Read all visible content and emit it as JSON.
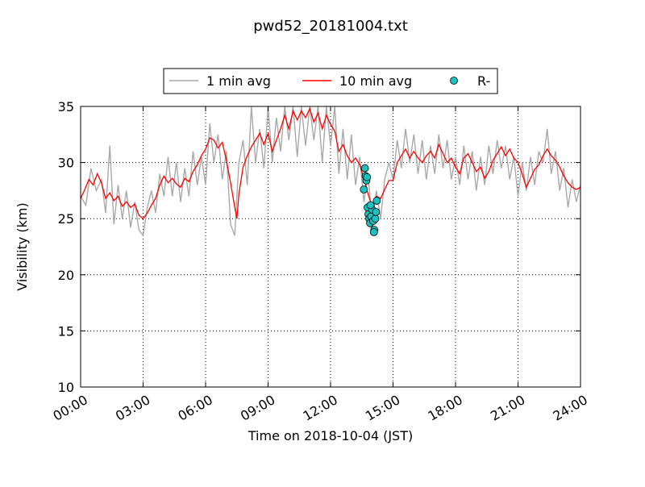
{
  "chart_data": {
    "type": "line",
    "title": "pwd52_20181004.txt",
    "xlabel": "Time on 2018-10-04 (JST)",
    "ylabel": "Visibility (km)",
    "xlim": [
      "00:00",
      "24:00"
    ],
    "ylim": [
      10,
      35
    ],
    "x_ticks": [
      "00:00",
      "03:00",
      "06:00",
      "09:00",
      "12:00",
      "15:00",
      "18:00",
      "21:00",
      "24:00"
    ],
    "y_ticks": [
      "10",
      "15",
      "20",
      "25",
      "30",
      "35"
    ],
    "grid": true,
    "legend_position": "top-center",
    "legend": [
      {
        "label": "1 min avg",
        "kind": "line",
        "color": "#a9a9a9"
      },
      {
        "label": "10 min avg",
        "kind": "line",
        "color": "#ff0000"
      },
      {
        "label": "R-",
        "kind": "marker",
        "color": "#20c0c0"
      }
    ],
    "series": [
      {
        "name": "1 min avg",
        "color": "#a9a9a9",
        "points": [
          [
            0.0,
            27.0
          ],
          [
            0.25,
            26.2
          ],
          [
            0.5,
            29.5
          ],
          [
            0.75,
            27.5
          ],
          [
            1.0,
            28.5
          ],
          [
            1.2,
            25.5
          ],
          [
            1.4,
            31.5
          ],
          [
            1.6,
            24.5
          ],
          [
            1.8,
            28.0
          ],
          [
            2.0,
            25.0
          ],
          [
            2.2,
            27.5
          ],
          [
            2.4,
            24.2
          ],
          [
            2.6,
            26.5
          ],
          [
            2.8,
            24.0
          ],
          [
            3.0,
            23.5
          ],
          [
            3.2,
            26.0
          ],
          [
            3.4,
            27.5
          ],
          [
            3.6,
            25.5
          ],
          [
            3.8,
            29.0
          ],
          [
            4.0,
            27.0
          ],
          [
            4.2,
            30.5
          ],
          [
            4.4,
            27.0
          ],
          [
            4.6,
            30.0
          ],
          [
            4.8,
            26.5
          ],
          [
            5.0,
            29.5
          ],
          [
            5.2,
            27.0
          ],
          [
            5.4,
            31.0
          ],
          [
            5.6,
            28.0
          ],
          [
            5.8,
            30.5
          ],
          [
            6.0,
            28.0
          ],
          [
            6.2,
            33.5
          ],
          [
            6.4,
            30.0
          ],
          [
            6.6,
            32.5
          ],
          [
            6.8,
            28.5
          ],
          [
            7.0,
            31.0
          ],
          [
            7.2,
            24.5
          ],
          [
            7.4,
            23.5
          ],
          [
            7.5,
            27.0
          ],
          [
            7.6,
            30.0
          ],
          [
            7.8,
            32.0
          ],
          [
            8.0,
            28.0
          ],
          [
            8.2,
            35.0
          ],
          [
            8.4,
            30.0
          ],
          [
            8.6,
            33.0
          ],
          [
            8.8,
            29.5
          ],
          [
            9.0,
            35.0
          ],
          [
            9.2,
            30.0
          ],
          [
            9.4,
            34.0
          ],
          [
            9.6,
            31.0
          ],
          [
            9.8,
            35.0
          ],
          [
            10.0,
            32.0
          ],
          [
            10.2,
            35.0
          ],
          [
            10.4,
            30.5
          ],
          [
            10.6,
            35.0
          ],
          [
            10.8,
            31.5
          ],
          [
            11.0,
            35.0
          ],
          [
            11.2,
            32.0
          ],
          [
            11.4,
            35.0
          ],
          [
            11.6,
            30.0
          ],
          [
            11.8,
            35.0
          ],
          [
            12.0,
            31.5
          ],
          [
            12.2,
            35.0
          ],
          [
            12.4,
            29.0
          ],
          [
            12.6,
            33.0
          ],
          [
            12.8,
            28.5
          ],
          [
            13.0,
            32.5
          ],
          [
            13.2,
            28.0
          ],
          [
            13.4,
            30.5
          ],
          [
            13.6,
            26.5
          ],
          [
            13.8,
            29.0
          ],
          [
            14.0,
            24.5
          ],
          [
            14.2,
            27.5
          ],
          [
            14.4,
            25.0
          ],
          [
            14.6,
            28.5
          ],
          [
            14.8,
            30.0
          ],
          [
            15.0,
            28.5
          ],
          [
            15.2,
            32.0
          ],
          [
            15.4,
            29.5
          ],
          [
            15.6,
            33.0
          ],
          [
            15.8,
            30.0
          ],
          [
            16.0,
            32.5
          ],
          [
            16.2,
            29.0
          ],
          [
            16.4,
            32.0
          ],
          [
            16.6,
            28.5
          ],
          [
            16.8,
            31.5
          ],
          [
            17.0,
            29.0
          ],
          [
            17.2,
            32.5
          ],
          [
            17.4,
            29.5
          ],
          [
            17.6,
            32.0
          ],
          [
            17.8,
            28.5
          ],
          [
            18.0,
            30.5
          ],
          [
            18.2,
            28.0
          ],
          [
            18.4,
            31.5
          ],
          [
            18.6,
            28.5
          ],
          [
            18.8,
            31.0
          ],
          [
            19.0,
            27.5
          ],
          [
            19.2,
            30.5
          ],
          [
            19.4,
            28.0
          ],
          [
            19.6,
            31.5
          ],
          [
            19.8,
            29.0
          ],
          [
            20.0,
            32.0
          ],
          [
            20.2,
            29.5
          ],
          [
            20.4,
            31.5
          ],
          [
            20.6,
            28.5
          ],
          [
            20.8,
            30.5
          ],
          [
            21.0,
            27.0
          ],
          [
            21.2,
            30.0
          ],
          [
            21.4,
            27.5
          ],
          [
            21.6,
            30.5
          ],
          [
            21.8,
            28.0
          ],
          [
            22.0,
            31.0
          ],
          [
            22.2,
            30.0
          ],
          [
            22.4,
            33.0
          ],
          [
            22.6,
            29.0
          ],
          [
            22.8,
            31.0
          ],
          [
            23.0,
            27.5
          ],
          [
            23.2,
            29.5
          ],
          [
            23.4,
            26.0
          ],
          [
            23.6,
            28.5
          ],
          [
            23.8,
            26.5
          ],
          [
            24.0,
            28.0
          ]
        ]
      },
      {
        "name": "10 min avg",
        "color": "#ff0000",
        "points": [
          [
            0.0,
            26.8
          ],
          [
            0.2,
            27.6
          ],
          [
            0.4,
            28.5
          ],
          [
            0.6,
            28.0
          ],
          [
            0.8,
            29.0
          ],
          [
            1.0,
            28.2
          ],
          [
            1.2,
            26.8
          ],
          [
            1.4,
            27.3
          ],
          [
            1.6,
            26.6
          ],
          [
            1.8,
            27.0
          ],
          [
            2.0,
            26.1
          ],
          [
            2.2,
            26.5
          ],
          [
            2.4,
            26.0
          ],
          [
            2.6,
            26.3
          ],
          [
            2.8,
            25.3
          ],
          [
            3.0,
            25.0
          ],
          [
            3.2,
            25.5
          ],
          [
            3.4,
            26.2
          ],
          [
            3.6,
            26.8
          ],
          [
            3.8,
            28.0
          ],
          [
            4.0,
            28.8
          ],
          [
            4.2,
            28.2
          ],
          [
            4.4,
            28.6
          ],
          [
            4.6,
            28.1
          ],
          [
            4.8,
            27.8
          ],
          [
            5.0,
            28.6
          ],
          [
            5.2,
            28.3
          ],
          [
            5.4,
            29.2
          ],
          [
            5.6,
            29.8
          ],
          [
            5.8,
            30.6
          ],
          [
            6.0,
            31.2
          ],
          [
            6.2,
            32.2
          ],
          [
            6.4,
            32.0
          ],
          [
            6.6,
            31.3
          ],
          [
            6.8,
            31.8
          ],
          [
            7.0,
            30.2
          ],
          [
            7.2,
            28.2
          ],
          [
            7.4,
            26.0
          ],
          [
            7.5,
            25.0
          ],
          [
            7.6,
            27.2
          ],
          [
            7.8,
            29.6
          ],
          [
            8.0,
            30.6
          ],
          [
            8.2,
            31.4
          ],
          [
            8.4,
            32.0
          ],
          [
            8.6,
            32.6
          ],
          [
            8.8,
            31.6
          ],
          [
            9.0,
            32.6
          ],
          [
            9.2,
            31.0
          ],
          [
            9.4,
            32.0
          ],
          [
            9.6,
            33.0
          ],
          [
            9.8,
            34.2
          ],
          [
            10.0,
            33.0
          ],
          [
            10.2,
            34.6
          ],
          [
            10.4,
            33.8
          ],
          [
            10.6,
            34.6
          ],
          [
            10.8,
            34.0
          ],
          [
            11.0,
            34.8
          ],
          [
            11.2,
            33.6
          ],
          [
            11.4,
            34.4
          ],
          [
            11.6,
            33.0
          ],
          [
            11.8,
            34.2
          ],
          [
            12.0,
            33.4
          ],
          [
            12.2,
            32.8
          ],
          [
            12.4,
            31.0
          ],
          [
            12.6,
            31.6
          ],
          [
            12.8,
            30.6
          ],
          [
            13.0,
            30.0
          ],
          [
            13.2,
            30.4
          ],
          [
            13.4,
            29.8
          ],
          [
            13.6,
            28.6
          ],
          [
            13.8,
            27.2
          ],
          [
            14.0,
            26.0
          ],
          [
            14.2,
            27.0
          ],
          [
            14.4,
            26.8
          ],
          [
            14.6,
            27.6
          ],
          [
            14.8,
            28.4
          ],
          [
            15.0,
            28.4
          ],
          [
            15.2,
            30.0
          ],
          [
            15.4,
            30.6
          ],
          [
            15.6,
            31.2
          ],
          [
            15.8,
            30.4
          ],
          [
            16.0,
            31.0
          ],
          [
            16.2,
            30.4
          ],
          [
            16.4,
            30.0
          ],
          [
            16.6,
            30.6
          ],
          [
            16.8,
            31.0
          ],
          [
            17.0,
            30.4
          ],
          [
            17.2,
            31.6
          ],
          [
            17.4,
            30.8
          ],
          [
            17.6,
            30.0
          ],
          [
            17.8,
            30.4
          ],
          [
            18.0,
            29.6
          ],
          [
            18.2,
            29.0
          ],
          [
            18.4,
            30.4
          ],
          [
            18.6,
            30.8
          ],
          [
            18.8,
            30.0
          ],
          [
            19.0,
            29.2
          ],
          [
            19.2,
            29.6
          ],
          [
            19.4,
            28.6
          ],
          [
            19.6,
            29.2
          ],
          [
            19.8,
            30.2
          ],
          [
            20.0,
            30.8
          ],
          [
            20.2,
            31.4
          ],
          [
            20.4,
            30.6
          ],
          [
            20.6,
            31.2
          ],
          [
            20.8,
            30.4
          ],
          [
            21.0,
            30.0
          ],
          [
            21.2,
            29.0
          ],
          [
            21.4,
            27.8
          ],
          [
            21.6,
            28.6
          ],
          [
            21.8,
            29.4
          ],
          [
            22.0,
            29.8
          ],
          [
            22.2,
            30.6
          ],
          [
            22.4,
            31.2
          ],
          [
            22.6,
            30.6
          ],
          [
            22.8,
            30.2
          ],
          [
            23.0,
            29.6
          ],
          [
            23.2,
            28.8
          ],
          [
            23.4,
            28.2
          ],
          [
            23.6,
            27.8
          ],
          [
            23.8,
            27.6
          ],
          [
            24.0,
            27.8
          ]
        ]
      },
      {
        "name": "R-",
        "color": "#20c0c0",
        "points": [
          [
            13.65,
            29.5
          ],
          [
            13.68,
            28.8
          ],
          [
            13.72,
            28.4
          ],
          [
            13.75,
            28.7
          ],
          [
            13.6,
            27.6
          ],
          [
            13.78,
            26.0
          ],
          [
            13.82,
            25.4
          ],
          [
            13.86,
            25.0
          ],
          [
            13.9,
            24.6
          ],
          [
            13.95,
            25.2
          ],
          [
            14.0,
            25.8
          ],
          [
            14.05,
            24.8
          ],
          [
            14.1,
            24.0
          ],
          [
            14.15,
            25.0
          ],
          [
            14.18,
            25.6
          ],
          [
            14.22,
            26.6
          ],
          [
            13.92,
            26.2
          ],
          [
            14.08,
            23.8
          ]
        ]
      }
    ]
  }
}
